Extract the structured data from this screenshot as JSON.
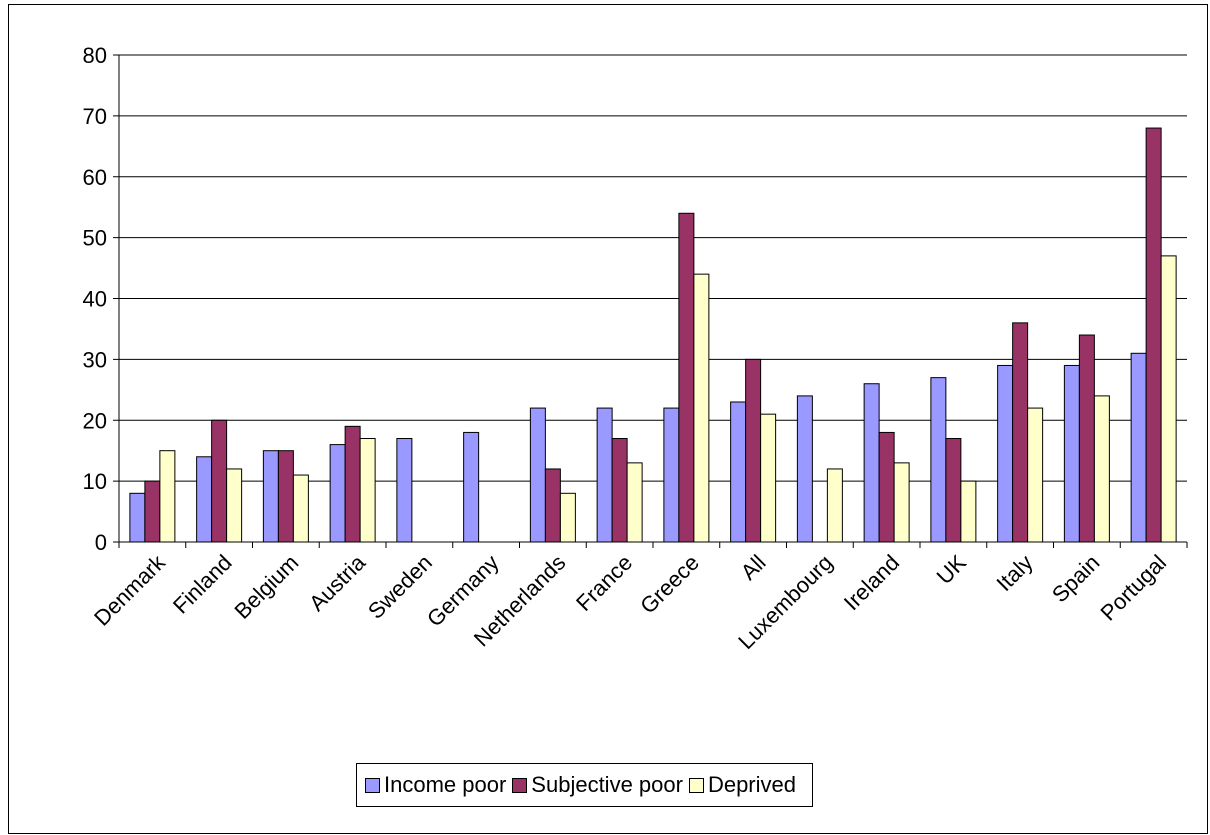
{
  "chart_data": {
    "type": "bar",
    "title": "",
    "xlabel": "",
    "ylabel": "",
    "ylim": [
      0,
      80
    ],
    "yticks": [
      0,
      10,
      20,
      30,
      40,
      50,
      60,
      70,
      80
    ],
    "grid": true,
    "legend_position": "bottom",
    "categories": [
      "Denmark",
      "Finland",
      "Belgium",
      "Austria",
      "Sweden",
      "Germany",
      "Netherlands",
      "France",
      "Greece",
      "All",
      "Luxembourg",
      "Ireland",
      "UK",
      "Italy",
      "Spain",
      "Portugal"
    ],
    "series": [
      {
        "name": "Income poor",
        "color": "#9999ff",
        "values": [
          8,
          14,
          15,
          16,
          17,
          18,
          22,
          22,
          22,
          23,
          24,
          26,
          27,
          29,
          29,
          31
        ]
      },
      {
        "name": "Subjective poor",
        "color": "#993366",
        "values": [
          10,
          20,
          15,
          19,
          null,
          null,
          12,
          17,
          54,
          30,
          null,
          18,
          17,
          36,
          34,
          68
        ]
      },
      {
        "name": "Deprived",
        "color": "#ffffcc",
        "values": [
          15,
          12,
          11,
          17,
          null,
          null,
          8,
          13,
          44,
          21,
          12,
          13,
          10,
          22,
          24,
          47
        ]
      }
    ]
  }
}
